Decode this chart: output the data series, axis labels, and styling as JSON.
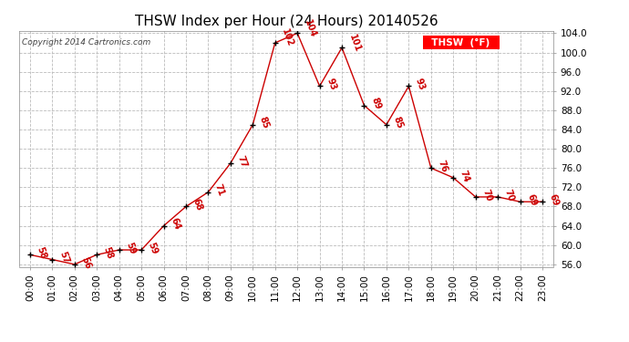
{
  "title": "THSW Index per Hour (24 Hours) 20140526",
  "copyright": "Copyright 2014 Cartronics.com",
  "legend_label": "THSW  (°F)",
  "hours": [
    "00:00",
    "01:00",
    "02:00",
    "03:00",
    "04:00",
    "05:00",
    "06:00",
    "07:00",
    "08:00",
    "09:00",
    "10:00",
    "11:00",
    "12:00",
    "13:00",
    "14:00",
    "15:00",
    "16:00",
    "17:00",
    "18:00",
    "19:00",
    "20:00",
    "21:00",
    "22:00",
    "23:00"
  ],
  "values": [
    58,
    57,
    56,
    58,
    59,
    59,
    64,
    68,
    71,
    77,
    85,
    102,
    104,
    93,
    101,
    89,
    85,
    93,
    76,
    74,
    70,
    70,
    69,
    69
  ],
  "ylim_min": 55.5,
  "ylim_max": 104.5,
  "line_color": "#cc0000",
  "marker_color": "#000000",
  "bg_color": "#ffffff",
  "grid_color": "#bbbbbb",
  "label_color": "#cc0000",
  "title_fontsize": 11,
  "tick_fontsize": 7.5,
  "annotation_fontsize": 7,
  "yticks": [
    56.0,
    60.0,
    64.0,
    68.0,
    72.0,
    76.0,
    80.0,
    84.0,
    88.0,
    92.0,
    96.0,
    100.0,
    104.0
  ]
}
